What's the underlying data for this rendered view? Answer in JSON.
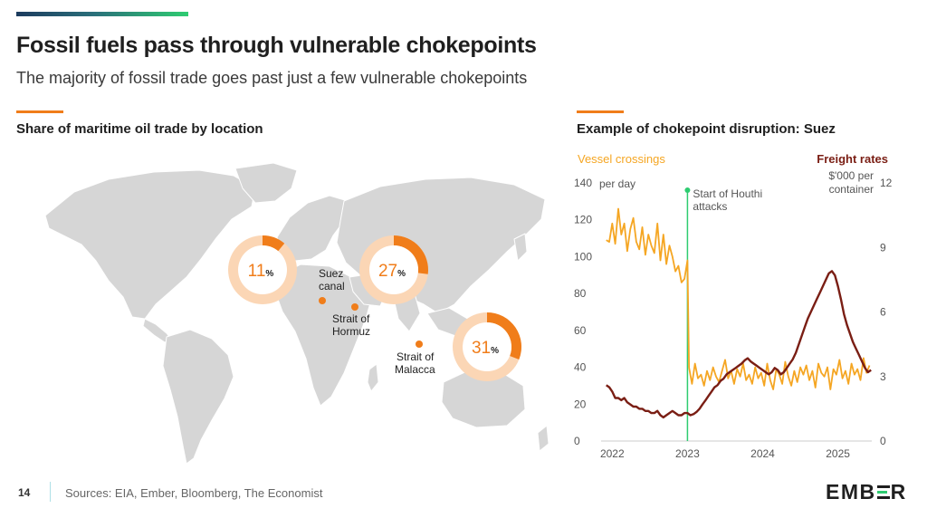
{
  "header": {
    "title": "Fossil fuels pass through vulnerable chokepoints",
    "subtitle": "The majority of fossil trade goes past just a few vulnerable chokepoints"
  },
  "left_panel": {
    "heading": "Share of maritime oil trade by location"
  },
  "right_panel": {
    "heading": "Example of chokepoint disruption: Suez"
  },
  "colors": {
    "orange": "#f07d1a",
    "light_orange": "#fbd6b5",
    "vessel_line": "#f5a623",
    "freight_line": "#7a1e14",
    "annotation_green": "#2ecc71",
    "land": "#d6d6d6"
  },
  "chart_data": [
    {
      "type": "pie",
      "title": "Share of maritime oil trade by location",
      "slices": [
        {
          "name": "Suez canal",
          "value": 11,
          "value_text": "11",
          "unit": "%",
          "label_lines": [
            "Suez",
            "canal"
          ]
        },
        {
          "name": "Strait of Hormuz",
          "value": 27,
          "value_text": "27",
          "unit": "%",
          "label_lines": [
            "Strait of",
            "Hormuz"
          ]
        },
        {
          "name": "Strait of Malacca",
          "value": 31,
          "value_text": "31",
          "unit": "%",
          "label_lines": [
            "Strait of",
            "Malacca"
          ]
        }
      ]
    },
    {
      "type": "line",
      "title": "Example of chokepoint disruption: Suez",
      "x_ticks": [
        "2022",
        "2023",
        "2024",
        "2025"
      ],
      "xlim": [
        2021.9,
        2025.45
      ],
      "left_axis": {
        "title": "Vessel crossings",
        "unit_label": "per day",
        "ylim": [
          0,
          140
        ],
        "ticks": [
          "0",
          "20",
          "40",
          "60",
          "80",
          "100",
          "120",
          "140"
        ]
      },
      "right_axis": {
        "title": "Freight rates",
        "unit_lines": [
          "$'000 per",
          "container"
        ],
        "ylim": [
          0,
          12
        ],
        "ticks": [
          "0",
          "3",
          "6",
          "9",
          "12"
        ]
      },
      "annotation": {
        "x": 2023.0,
        "lines": [
          "Start of Houthi",
          "attacks"
        ]
      },
      "series": [
        {
          "name": "Vessel crossings",
          "axis": "left",
          "x": [
            2021.92,
            2021.96,
            2022.0,
            2022.04,
            2022.08,
            2022.12,
            2022.16,
            2022.2,
            2022.24,
            2022.28,
            2022.32,
            2022.36,
            2022.4,
            2022.44,
            2022.48,
            2022.52,
            2022.56,
            2022.6,
            2022.64,
            2022.68,
            2022.72,
            2022.76,
            2022.8,
            2022.84,
            2022.88,
            2022.92,
            2022.96,
            2023.0,
            2023.02,
            2023.06,
            2023.1,
            2023.14,
            2023.18,
            2023.22,
            2023.26,
            2023.3,
            2023.34,
            2023.38,
            2023.42,
            2023.46,
            2023.5,
            2023.54,
            2023.58,
            2023.62,
            2023.66,
            2023.7,
            2023.74,
            2023.78,
            2023.82,
            2023.86,
            2023.9,
            2023.94,
            2023.98,
            2024.02,
            2024.06,
            2024.1,
            2024.14,
            2024.18,
            2024.22,
            2024.26,
            2024.3,
            2024.34,
            2024.38,
            2024.42,
            2024.46,
            2024.5,
            2024.54,
            2024.58,
            2024.62,
            2024.66,
            2024.7,
            2024.74,
            2024.78,
            2024.82,
            2024.86,
            2024.9,
            2024.94,
            2024.98,
            2025.02,
            2025.06,
            2025.1,
            2025.14,
            2025.18,
            2025.22,
            2025.26,
            2025.3,
            2025.34,
            2025.38,
            2025.42
          ],
          "values": [
            109,
            108,
            118,
            107,
            126,
            112,
            118,
            103,
            115,
            121,
            108,
            104,
            116,
            101,
            112,
            106,
            102,
            118,
            98,
            112,
            96,
            106,
            100,
            92,
            95,
            86,
            88,
            98,
            40,
            31,
            42,
            34,
            36,
            30,
            38,
            33,
            40,
            35,
            32,
            38,
            44,
            34,
            38,
            31,
            39,
            35,
            42,
            33,
            36,
            31,
            40,
            34,
            37,
            30,
            42,
            33,
            28,
            39,
            36,
            31,
            43,
            35,
            30,
            38,
            32,
            40,
            36,
            41,
            33,
            38,
            29,
            42,
            37,
            35,
            40,
            28,
            39,
            36,
            44,
            34,
            38,
            31,
            42,
            36,
            39,
            33,
            45,
            37,
            41
          ]
        },
        {
          "name": "Freight rates",
          "axis": "right",
          "x": [
            2021.92,
            2021.96,
            2022.0,
            2022.04,
            2022.08,
            2022.12,
            2022.16,
            2022.2,
            2022.24,
            2022.28,
            2022.32,
            2022.36,
            2022.4,
            2022.44,
            2022.48,
            2022.52,
            2022.56,
            2022.6,
            2022.64,
            2022.68,
            2022.72,
            2022.76,
            2022.8,
            2022.84,
            2022.88,
            2022.92,
            2022.96,
            2023.0,
            2023.04,
            2023.08,
            2023.12,
            2023.16,
            2023.2,
            2023.24,
            2023.28,
            2023.32,
            2023.36,
            2023.4,
            2023.44,
            2023.48,
            2023.52,
            2023.56,
            2023.6,
            2023.64,
            2023.68,
            2023.72,
            2023.76,
            2023.8,
            2023.84,
            2023.88,
            2023.92,
            2023.96,
            2024.0,
            2024.04,
            2024.08,
            2024.12,
            2024.16,
            2024.2,
            2024.24,
            2024.28,
            2024.32,
            2024.36,
            2024.4,
            2024.44,
            2024.48,
            2024.52,
            2024.56,
            2024.6,
            2024.64,
            2024.68,
            2024.72,
            2024.76,
            2024.8,
            2024.84,
            2024.88,
            2024.92,
            2024.96,
            2025.0,
            2025.04,
            2025.08,
            2025.12,
            2025.16,
            2025.2,
            2025.24,
            2025.28,
            2025.32,
            2025.36,
            2025.4,
            2025.44
          ],
          "values": [
            2.6,
            2.5,
            2.3,
            2.0,
            2.0,
            1.9,
            2.0,
            1.8,
            1.7,
            1.6,
            1.6,
            1.5,
            1.5,
            1.4,
            1.4,
            1.3,
            1.3,
            1.4,
            1.2,
            1.1,
            1.2,
            1.3,
            1.4,
            1.3,
            1.2,
            1.2,
            1.3,
            1.3,
            1.2,
            1.25,
            1.35,
            1.5,
            1.7,
            1.9,
            2.1,
            2.3,
            2.5,
            2.6,
            2.8,
            2.9,
            3.1,
            3.2,
            3.3,
            3.4,
            3.5,
            3.6,
            3.75,
            3.85,
            3.7,
            3.6,
            3.5,
            3.4,
            3.3,
            3.2,
            3.1,
            3.2,
            3.4,
            3.3,
            3.1,
            3.2,
            3.4,
            3.6,
            3.8,
            4.1,
            4.5,
            4.9,
            5.3,
            5.7,
            6.0,
            6.3,
            6.6,
            6.9,
            7.2,
            7.5,
            7.8,
            7.9,
            7.7,
            7.2,
            6.6,
            5.9,
            5.4,
            5.0,
            4.6,
            4.3,
            4.0,
            3.7,
            3.4,
            3.2,
            3.3
          ]
        }
      ]
    }
  ],
  "footer": {
    "page_number": "14",
    "sources": "Sources: EIA, Ember, Bloomberg, The Economist",
    "logo_text": {
      "part1": "EMB",
      "part2": "R"
    }
  }
}
